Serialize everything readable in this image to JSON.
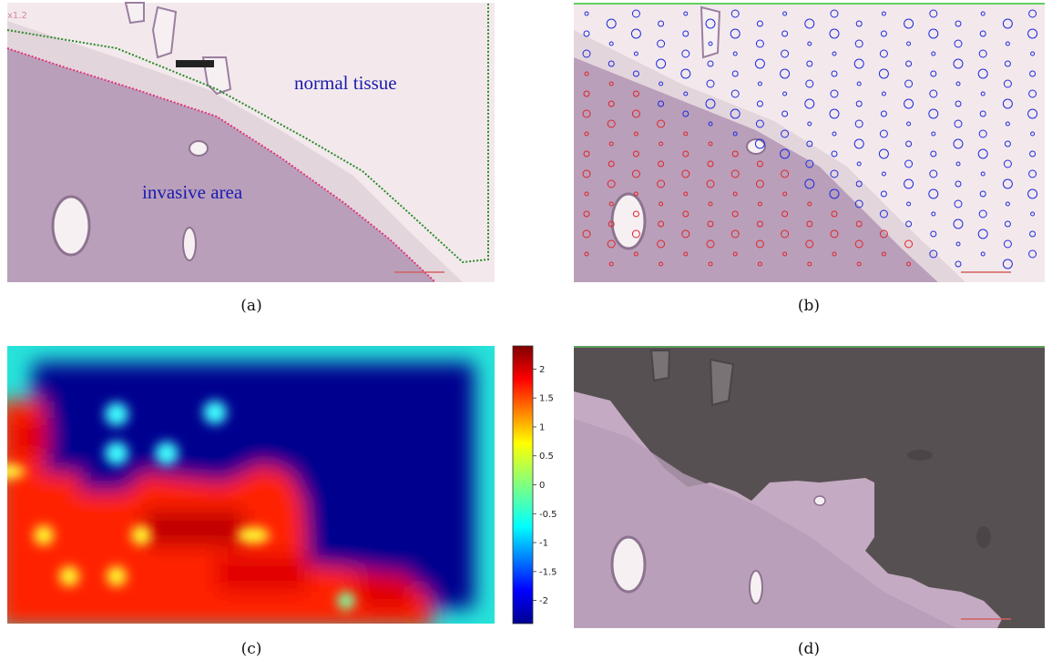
{
  "panels": {
    "a": {
      "caption": "(a)",
      "labels": {
        "normal": "normal tissue",
        "invasive": "invasive area"
      },
      "label_color": "#1b1bb0",
      "boundary_colors": {
        "normal": "#2a8a2a",
        "invasive": "#e0337a"
      }
    },
    "b": {
      "caption": "(b)",
      "marker_colors": {
        "normal": "#1f2bdc",
        "invasive": "#e0242a"
      }
    },
    "c": {
      "caption": "(c)",
      "colorbar": {
        "ticks": [
          "2",
          "1.5",
          "1",
          "0.5",
          "0",
          "-0.5",
          "-1",
          "-1.5",
          "-2"
        ],
        "range": [
          -2.4,
          2.4
        ],
        "colormap": "jet"
      }
    },
    "d": {
      "caption": "(d)"
    }
  }
}
